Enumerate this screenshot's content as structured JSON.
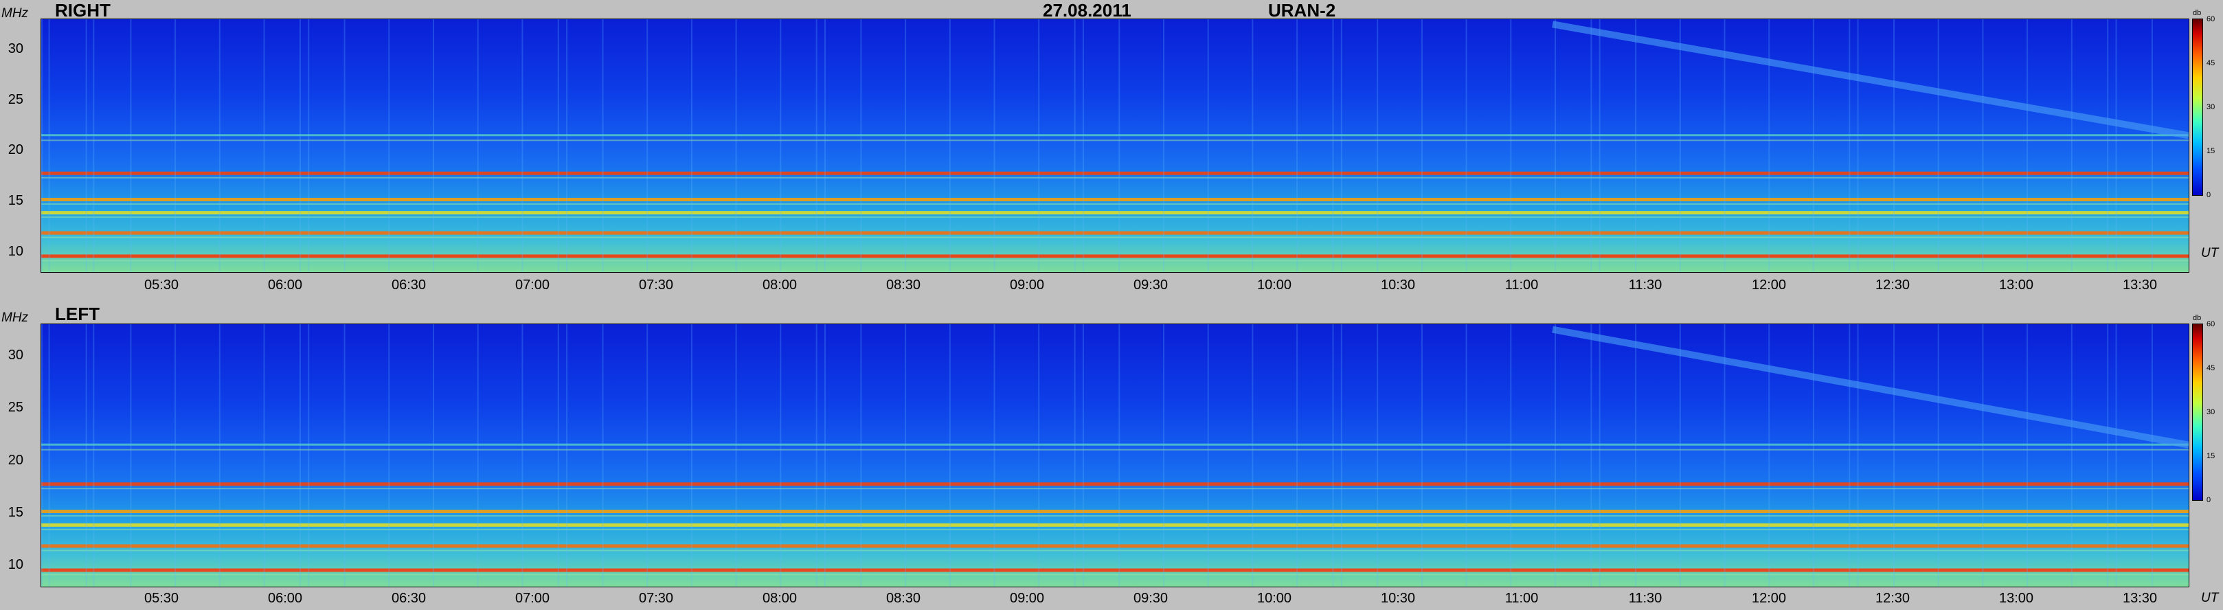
{
  "header": {
    "date": "27.08.2011",
    "instrument": "URAN-2"
  },
  "colors": {
    "background": "#c0c0c0",
    "low": "#0a1fd6",
    "high": "#d00000"
  },
  "chart_data": [
    {
      "type": "heatmap",
      "panel_label": "RIGHT",
      "ylabel": "MHz",
      "xlabel": "UT",
      "yticks": [
        "30",
        "25",
        "20",
        "15",
        "10"
      ],
      "xticks": [
        "05:30",
        "06:00",
        "06:30",
        "07:00",
        "07:30",
        "08:00",
        "08:30",
        "09:00",
        "09:30",
        "10:00",
        "10:30",
        "11:00",
        "11:30",
        "12:00",
        "12:30",
        "13:00",
        "13:30"
      ],
      "colorbar": {
        "unit": "db",
        "ticks": [
          "60",
          "45",
          "30",
          "15",
          "0"
        ],
        "range": [
          0,
          60
        ]
      },
      "ylim": [
        8,
        33
      ],
      "bands_mhz": [
        9.6,
        11.9,
        13.9,
        15.2,
        17.8,
        21.5
      ]
    },
    {
      "type": "heatmap",
      "panel_label": "LEFT",
      "ylabel": "MHz",
      "xlabel": "UT",
      "yticks": [
        "30",
        "25",
        "20",
        "15",
        "10"
      ],
      "xticks": [
        "05:30",
        "06:00",
        "06:30",
        "07:00",
        "07:30",
        "08:00",
        "08:30",
        "09:00",
        "09:30",
        "10:00",
        "10:30",
        "11:00",
        "11:30",
        "12:00",
        "12:30",
        "13:00",
        "13:30"
      ],
      "colorbar": {
        "unit": "db",
        "ticks": [
          "60",
          "45",
          "30",
          "15",
          "0"
        ],
        "range": [
          0,
          60
        ]
      },
      "ylim": [
        8,
        33
      ],
      "bands_mhz": [
        9.6,
        11.9,
        13.9,
        15.2,
        17.8,
        21.5
      ]
    }
  ]
}
